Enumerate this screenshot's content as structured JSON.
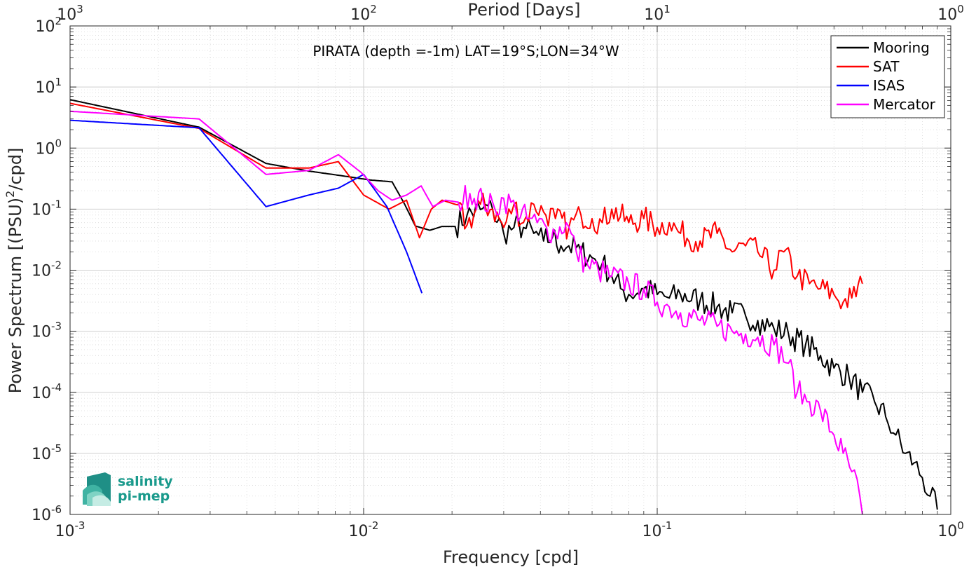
{
  "chart_data": {
    "type": "line",
    "title": "PIRATA (depth =-1m) LAT=19°S;LON=34°W",
    "xlabel": "Frequency [cpd]",
    "ylabel": "Power Spectrum [(PSU)",
    "ylabel_sup": "2",
    "ylabel_tail": "/cpd]",
    "top_xlabel": "Period [Days]",
    "x_scale": "log",
    "y_scale": "log",
    "xlim": [
      0.001,
      1
    ],
    "ylim": [
      1e-06,
      100
    ],
    "grid": true,
    "legend_position": "top-right",
    "x_ticks": [
      {
        "base": "10",
        "exp": "-3",
        "value": 0.001
      },
      {
        "base": "10",
        "exp": "-2",
        "value": 0.01
      },
      {
        "base": "10",
        "exp": "-1",
        "value": 0.1
      },
      {
        "base": "10",
        "exp": "0",
        "value": 1
      }
    ],
    "top_x_ticks": [
      {
        "base": "10",
        "exp": "3",
        "value": 0.001
      },
      {
        "base": "10",
        "exp": "2",
        "value": 0.01
      },
      {
        "base": "10",
        "exp": "1",
        "value": 0.1
      },
      {
        "base": "10",
        "exp": "0",
        "value": 1
      }
    ],
    "y_ticks": [
      {
        "base": "10",
        "exp": "2",
        "value": 100
      },
      {
        "base": "10",
        "exp": "1",
        "value": 10
      },
      {
        "base": "10",
        "exp": "0",
        "value": 1
      },
      {
        "base": "10",
        "exp": "-1",
        "value": 0.1
      },
      {
        "base": "10",
        "exp": "-2",
        "value": 0.01
      },
      {
        "base": "10",
        "exp": "-3",
        "value": 0.001
      },
      {
        "base": "10",
        "exp": "-4",
        "value": 0.0001
      },
      {
        "base": "10",
        "exp": "-5",
        "value": 1e-05
      },
      {
        "base": "10",
        "exp": "-6",
        "value": 1e-06
      }
    ],
    "series": [
      {
        "name": "Mooring",
        "color": "#000000",
        "x": [
          0.001,
          0.00275,
          0.00465,
          0.0065,
          0.0085,
          0.0105,
          0.0125,
          0.0138,
          0.015,
          0.0168,
          0.0185,
          0.0205,
          0.0225,
          0.025,
          0.0275,
          0.03,
          0.0325,
          0.035,
          0.038,
          0.041,
          0.044,
          0.047,
          0.05,
          0.055,
          0.06,
          0.065,
          0.07,
          0.075,
          0.08,
          0.09,
          0.1,
          0.11,
          0.12,
          0.14,
          0.16,
          0.18,
          0.2,
          0.22,
          0.25,
          0.28,
          0.32,
          0.36,
          0.4,
          0.45,
          0.5,
          0.55,
          0.6,
          0.65,
          0.7,
          0.75,
          0.8,
          0.85,
          0.9
        ],
        "values": [
          6.2,
          2.2,
          0.56,
          0.42,
          0.35,
          0.3,
          0.28,
          0.12,
          0.053,
          0.045,
          0.052,
          0.052,
          0.08,
          0.098,
          0.1,
          0.04,
          0.05,
          0.05,
          0.04,
          0.03,
          0.035,
          0.025,
          0.025,
          0.02,
          0.016,
          0.013,
          0.008,
          0.005,
          0.004,
          0.005,
          0.004,
          0.0035,
          0.004,
          0.0032,
          0.0025,
          0.002,
          0.0018,
          0.0015,
          0.0011,
          0.0009,
          0.0006,
          0.0004,
          0.00025,
          0.00018,
          0.0001,
          7e-05,
          4e-05,
          2e-05,
          1e-05,
          7e-06,
          4e-06,
          2e-06,
          1.2e-06
        ]
      },
      {
        "name": "SAT",
        "color": "#ff0000",
        "x": [
          0.001,
          0.00275,
          0.00465,
          0.0065,
          0.0082,
          0.01,
          0.0122,
          0.014,
          0.0155,
          0.017,
          0.0185,
          0.0205,
          0.0225,
          0.025,
          0.0275,
          0.03,
          0.0325,
          0.035,
          0.038,
          0.041,
          0.045,
          0.05,
          0.055,
          0.06,
          0.065,
          0.07,
          0.08,
          0.09,
          0.1,
          0.11,
          0.12,
          0.14,
          0.16,
          0.18,
          0.2,
          0.22,
          0.25,
          0.27,
          0.3,
          0.33,
          0.36,
          0.4,
          0.43,
          0.46,
          0.5
        ],
        "values": [
          5.4,
          2.1,
          0.47,
          0.47,
          0.6,
          0.17,
          0.1,
          0.14,
          0.034,
          0.1,
          0.14,
          0.12,
          0.055,
          0.12,
          0.1,
          0.05,
          0.12,
          0.06,
          0.12,
          0.09,
          0.07,
          0.05,
          0.08,
          0.07,
          0.06,
          0.1,
          0.06,
          0.07,
          0.05,
          0.06,
          0.04,
          0.03,
          0.04,
          0.02,
          0.025,
          0.02,
          0.01,
          0.02,
          0.008,
          0.006,
          0.005,
          0.004,
          0.003,
          0.0035,
          0.006
        ]
      },
      {
        "name": "ISAS",
        "color": "#0000ff",
        "x": [
          0.001,
          0.00275,
          0.00465,
          0.0065,
          0.0082,
          0.01,
          0.012,
          0.014,
          0.0158
        ],
        "values": [
          2.85,
          2.15,
          0.11,
          0.17,
          0.22,
          0.37,
          0.11,
          0.02,
          0.0042
        ]
      },
      {
        "name": "Mercator",
        "color": "#ff00ff",
        "x": [
          0.001,
          0.00275,
          0.00465,
          0.0065,
          0.0082,
          0.0098,
          0.0112,
          0.0125,
          0.014,
          0.0157,
          0.0172,
          0.019,
          0.021,
          0.023,
          0.0255,
          0.028,
          0.03,
          0.033,
          0.036,
          0.039,
          0.042,
          0.045,
          0.049,
          0.053,
          0.058,
          0.063,
          0.07,
          0.08,
          0.09,
          0.1,
          0.11,
          0.12,
          0.14,
          0.16,
          0.18,
          0.2,
          0.22,
          0.25,
          0.28,
          0.3,
          0.33,
          0.36,
          0.4,
          0.43,
          0.46,
          0.49,
          0.5
        ],
        "values": [
          4.0,
          3.0,
          0.37,
          0.43,
          0.78,
          0.4,
          0.2,
          0.14,
          0.17,
          0.24,
          0.11,
          0.14,
          0.13,
          0.18,
          0.14,
          0.1,
          0.15,
          0.1,
          0.07,
          0.06,
          0.05,
          0.04,
          0.06,
          0.02,
          0.012,
          0.01,
          0.008,
          0.006,
          0.005,
          0.003,
          0.0025,
          0.002,
          0.0015,
          0.0012,
          0.001,
          0.0009,
          0.0008,
          0.0006,
          0.0003,
          0.0001,
          7e-05,
          5e-05,
          2e-05,
          1e-05,
          5e-06,
          2e-06,
          1e-06
        ]
      }
    ]
  },
  "logo": {
    "line1": "salinity",
    "line2": "pi-mep"
  }
}
